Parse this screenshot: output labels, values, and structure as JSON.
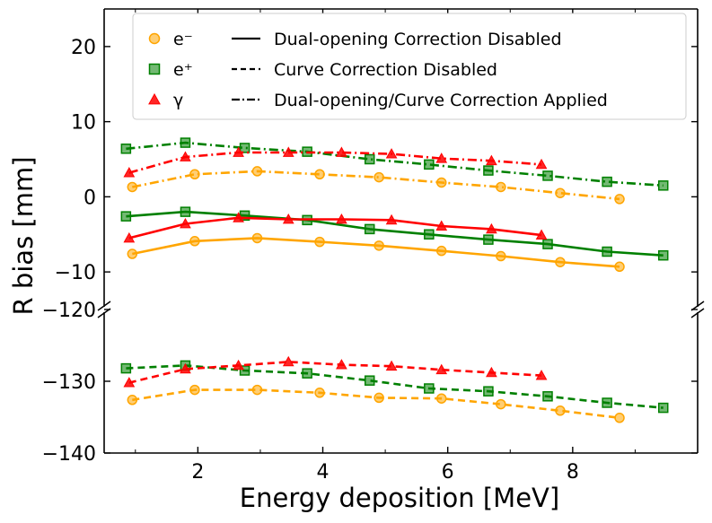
{
  "chart_data": {
    "type": "line",
    "xlabel": "Energy deposition [MeV]",
    "ylabel": "R bias [mm]",
    "xlim": [
      0.5,
      10.0
    ],
    "x_ticks": [
      2,
      4,
      6,
      8
    ],
    "upper_panel": {
      "ylim": [
        -15,
        25
      ],
      "y_ticks": [
        -10,
        0,
        10,
        20
      ]
    },
    "lower_panel": {
      "ylim": [
        -140,
        -120
      ],
      "y_ticks": [
        -140,
        -130,
        -120
      ]
    },
    "legend_position": "top",
    "legend_particles": [
      {
        "name": "e⁻",
        "key": "e_minus"
      },
      {
        "name": "e⁺",
        "key": "e_plus"
      },
      {
        "name": "γ",
        "key": "gamma"
      }
    ],
    "legend_styles": [
      {
        "name": "Dual-opening Correction Disabled",
        "dash": "solid"
      },
      {
        "name": "Curve Correction Disabled",
        "dash": "dashed"
      },
      {
        "name": "Dual-opening/Curve Correction Applied",
        "dash": "dashdot"
      }
    ],
    "colors": {
      "e_minus": "#ffa500",
      "e_plus": "#008000",
      "gamma": "#ff0000"
    },
    "series": [
      {
        "name": "e⁻ Dual-opening Correction Disabled",
        "key": "e_minus",
        "panel": "upper",
        "dash": "solid",
        "x": [
          0.95,
          1.95,
          2.95,
          3.95,
          4.9,
          5.9,
          6.85,
          7.8,
          8.75
        ],
        "y": [
          -7.6,
          -5.9,
          -5.5,
          -6.0,
          -6.5,
          -7.2,
          -7.9,
          -8.7,
          -9.3
        ]
      },
      {
        "name": "e⁺ Dual-opening Correction Disabled",
        "key": "e_plus",
        "panel": "upper",
        "dash": "solid",
        "x": [
          0.85,
          1.8,
          2.75,
          3.75,
          4.75,
          5.7,
          6.65,
          7.6,
          8.55,
          9.45
        ],
        "y": [
          -2.6,
          -2.0,
          -2.5,
          -3.1,
          -4.3,
          -5.0,
          -5.7,
          -6.3,
          -7.3,
          -7.8
        ]
      },
      {
        "name": "γ Dual-opening Correction Disabled",
        "key": "gamma",
        "panel": "upper",
        "dash": "solid",
        "x": [
          0.9,
          1.8,
          2.65,
          3.45,
          4.3,
          5.1,
          5.9,
          6.7,
          7.5
        ],
        "y": [
          -5.5,
          -3.6,
          -2.8,
          -3.0,
          -3.0,
          -3.1,
          -3.9,
          -4.3,
          -5.1
        ]
      },
      {
        "name": "e⁻ Dual-opening/Curve Correction Applied",
        "key": "e_minus",
        "panel": "upper",
        "dash": "dashdot",
        "x": [
          0.95,
          1.95,
          2.95,
          3.95,
          4.9,
          5.9,
          6.85,
          7.8,
          8.75
        ],
        "y": [
          1.3,
          3.0,
          3.4,
          3.0,
          2.6,
          1.9,
          1.3,
          0.5,
          -0.3
        ]
      },
      {
        "name": "e⁺ Dual-opening/Curve Correction Applied",
        "key": "e_plus",
        "panel": "upper",
        "dash": "dashdot",
        "x": [
          0.85,
          1.8,
          2.75,
          3.75,
          4.75,
          5.7,
          6.65,
          7.6,
          8.55,
          9.45
        ],
        "y": [
          6.4,
          7.2,
          6.5,
          6.0,
          5.0,
          4.3,
          3.5,
          2.8,
          2.0,
          1.5
        ]
      },
      {
        "name": "γ Dual-opening/Curve Correction Applied",
        "key": "gamma",
        "panel": "upper",
        "dash": "dashdot",
        "x": [
          0.9,
          1.8,
          2.65,
          3.45,
          4.3,
          5.1,
          5.9,
          6.7,
          7.5
        ],
        "y": [
          3.2,
          5.3,
          5.9,
          5.9,
          5.9,
          5.7,
          5.1,
          4.8,
          4.3
        ]
      },
      {
        "name": "e⁻ Curve Correction Disabled",
        "key": "e_minus",
        "panel": "lower",
        "dash": "dashed",
        "x": [
          0.95,
          1.95,
          2.95,
          3.95,
          4.9,
          5.9,
          6.85,
          7.8,
          8.75
        ],
        "y": [
          -132.6,
          -131.2,
          -131.2,
          -131.6,
          -132.3,
          -132.4,
          -133.2,
          -134.1,
          -135.1
        ]
      },
      {
        "name": "e⁺ Curve Correction Disabled",
        "key": "e_plus",
        "panel": "lower",
        "dash": "dashed",
        "x": [
          0.85,
          1.8,
          2.75,
          3.75,
          4.75,
          5.7,
          6.65,
          7.6,
          8.55,
          9.45
        ],
        "y": [
          -128.2,
          -127.8,
          -128.5,
          -128.9,
          -129.9,
          -131.0,
          -131.4,
          -132.1,
          -133.0,
          -133.7
        ]
      },
      {
        "name": "γ Curve Correction Disabled",
        "key": "gamma",
        "panel": "lower",
        "dash": "dashed",
        "x": [
          0.9,
          1.8,
          2.65,
          3.45,
          4.3,
          5.1,
          5.9,
          6.7,
          7.5
        ],
        "y": [
          -130.2,
          -128.3,
          -127.8,
          -127.3,
          -127.7,
          -127.9,
          -128.4,
          -128.8,
          -129.2
        ]
      }
    ]
  }
}
